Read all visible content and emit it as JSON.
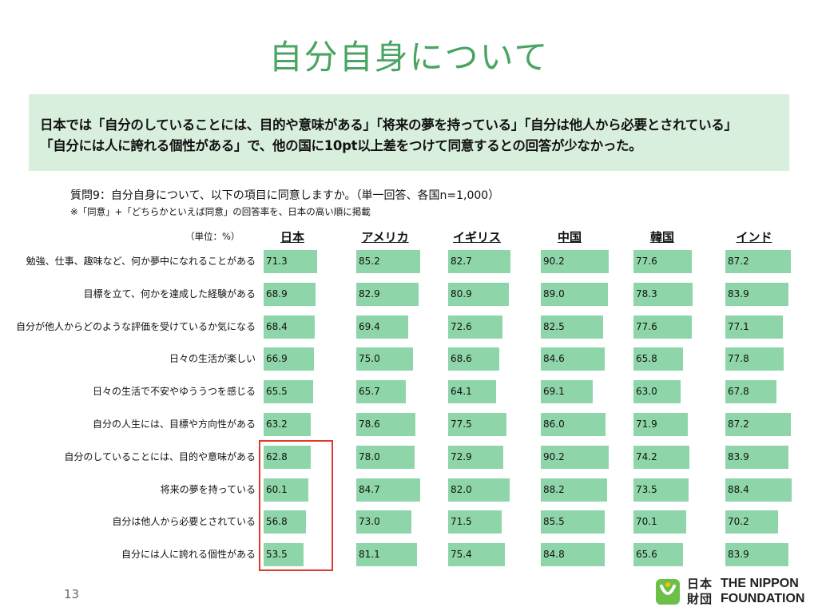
{
  "page": {
    "title": "自分自身について",
    "summary_line1": "日本では「自分のしていることには、目的や意味がある」「将来の夢を持っている」「自分は他人から必要とされている」",
    "summary_line2": "「自分には人に誇れる個性がある」で、他の国に10pt以上差をつけて同意するとの回答が少なかった。",
    "question": "質問9：自分自身について、以下の項目に同意しますか。（単一回答、各国n=1,000）",
    "note": "※「同意」+「どちらかといえば同意」の回答率を、日本の高い順に掲載",
    "unit": "（単位：%）",
    "page_number": "13",
    "logo": {
      "jp_line1": "日本",
      "jp_line2": "財団",
      "en_line1": "THE NIPPON",
      "en_line2": "FOUNDATION"
    },
    "colors": {
      "title": "#4aa463",
      "summary_bg": "#d9efdd",
      "bar": "#8ed6a9",
      "highlight": "#e03a2c"
    }
  },
  "chart_data": {
    "type": "bar",
    "orientation": "horizontal",
    "unit": "%",
    "xlim": [
      0,
      100
    ],
    "highlight": {
      "series": "日本",
      "from_category": "自分のしていることには、目的や意味がある"
    },
    "categories": [
      "勉強、仕事、趣味など、何か夢中になれることがある",
      "目標を立て、何かを達成した経験がある",
      "自分が他人からどのような評価を受けているか気になる",
      "日々の生活が楽しい",
      "日々の生活で不安やゆううつを感じる",
      "自分の人生には、目標や方向性がある",
      "自分のしていることには、目的や意味がある",
      "将来の夢を持っている",
      "自分は他人から必要とされている",
      "自分には人に誇れる個性がある"
    ],
    "series": [
      {
        "name": "日本",
        "values": [
          71.3,
          68.9,
          68.4,
          66.9,
          65.5,
          63.2,
          62.8,
          60.1,
          56.8,
          53.5
        ]
      },
      {
        "name": "アメリカ",
        "values": [
          85.2,
          82.9,
          69.4,
          75.0,
          65.7,
          78.6,
          78.0,
          84.7,
          73.0,
          81.1
        ]
      },
      {
        "name": "イギリス",
        "values": [
          82.7,
          80.9,
          72.6,
          68.6,
          64.1,
          77.5,
          72.9,
          82.0,
          71.5,
          75.4
        ]
      },
      {
        "name": "中国",
        "values": [
          90.2,
          89.0,
          82.5,
          84.6,
          69.1,
          86.0,
          90.2,
          88.2,
          85.5,
          84.8
        ]
      },
      {
        "name": "韓国",
        "values": [
          77.6,
          78.3,
          77.6,
          65.8,
          63.0,
          71.9,
          74.2,
          73.5,
          70.1,
          65.6
        ]
      },
      {
        "name": "インド",
        "values": [
          87.2,
          83.9,
          77.1,
          77.8,
          67.8,
          87.2,
          83.9,
          88.4,
          70.2,
          83.9
        ]
      }
    ]
  }
}
